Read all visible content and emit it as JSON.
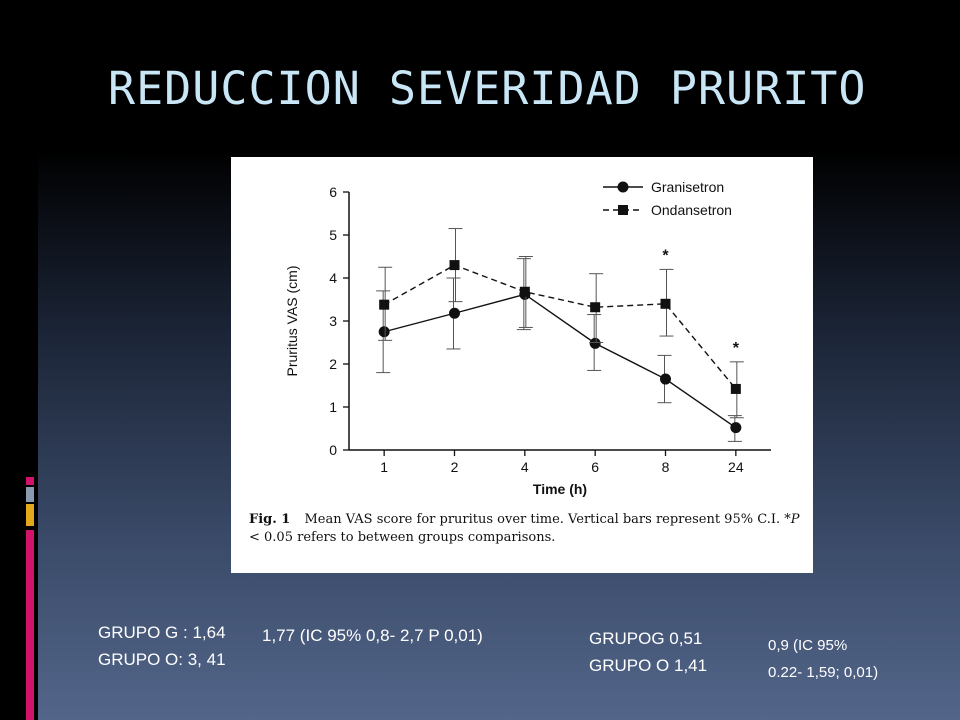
{
  "title": "REDUCCION SEVERIDAD PRURITO",
  "chart_data": {
    "type": "line",
    "ylabel": "Pruritus VAS (cm)",
    "xlabel": "Time (h)",
    "categories": [
      "1",
      "2",
      "4",
      "6",
      "8",
      "24"
    ],
    "ylim": [
      0,
      6
    ],
    "yticks": [
      "0",
      "1",
      "2",
      "3",
      "4",
      "5",
      "6"
    ],
    "legend_position": "top-right",
    "series": [
      {
        "name": "Granisetron",
        "marker": "circle",
        "line": "solid",
        "color": "#111111",
        "values": [
          2.75,
          3.18,
          3.62,
          2.48,
          1.65,
          0.52
        ],
        "ci_low": [
          1.8,
          2.35,
          2.8,
          1.85,
          1.1,
          0.2
        ],
        "ci_high": [
          3.7,
          4.0,
          4.45,
          3.15,
          2.2,
          0.8
        ]
      },
      {
        "name": "Ondansetron",
        "marker": "square",
        "line": "dashed",
        "color": "#111111",
        "values": [
          3.38,
          4.3,
          3.68,
          3.32,
          3.4,
          1.42
        ],
        "ci_low": [
          2.55,
          3.45,
          2.85,
          2.5,
          2.65,
          0.75
        ],
        "ci_high": [
          4.25,
          5.15,
          4.5,
          4.1,
          4.2,
          2.05
        ]
      }
    ],
    "annotations": [
      {
        "category": "8",
        "text": "*",
        "y": 4.55
      },
      {
        "category": "24",
        "text": "*",
        "y": 2.4
      }
    ],
    "caption": {
      "label": "Fig. 1",
      "text_before_p": "Mean VAS score for pruritus over time. Vertical bars represent 95% C.I. *",
      "p_text": "P",
      "text_after_p": " < 0.05 refers to between groups comparisons."
    }
  },
  "notes": {
    "left_line1": "GRUPO G : 1,64",
    "left_line2": "GRUPO O: 3, 41",
    "left_diff": "1,77 (IC 95% 0,8- 2,7 P 0,01)",
    "right_line1": "GRUPOG 0,51",
    "right_line2": "GRUPO O 1,41",
    "right_diff_line1": "0,9 (IC 95%",
    "right_diff_line2": "0.22- 1,59; 0,01)"
  },
  "colors": {
    "title": "#c8e6f5",
    "background_top": "#000000",
    "background_bottom": "#53668a",
    "accent_pink": "#d1146a",
    "accent_gray": "#8a9bb0",
    "accent_gold": "#e3a81c"
  }
}
